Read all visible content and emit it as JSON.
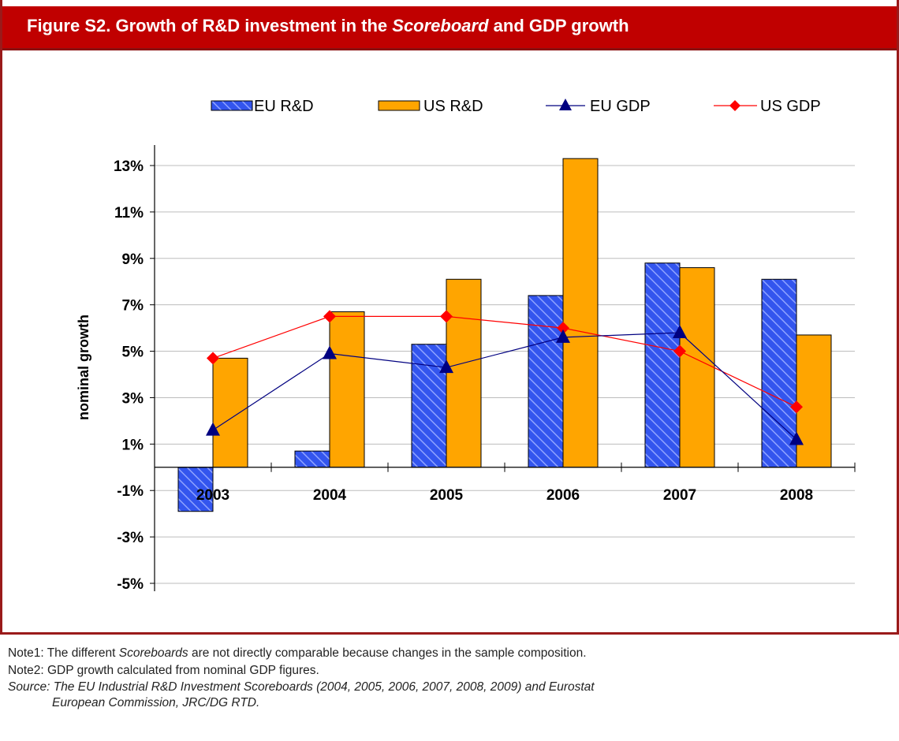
{
  "header": {
    "title_prefix": "Figure S2. Growth of R&D investment in the ",
    "title_em": "Scoreboard",
    "title_suffix": " and GDP growth"
  },
  "notes": {
    "note1_prefix": "Note1: The different ",
    "note1_em": "Scoreboards",
    "note1_suffix": " are not directly comparable because changes in the sample composition.",
    "note2": "Note2: GDP growth calculated from nominal GDP figures.",
    "source_line1": "Source: The EU Industrial R&D Investment Scoreboards (2004, 2005, 2006, 2007, 2008, 2009) and Eurostat",
    "source_line2": "European Commission, JRC/DG RTD."
  },
  "colors": {
    "eu_bar": "#3355ee",
    "us_bar": "#ffa500",
    "eu_gdp": "#000080",
    "us_gdp": "#ff0000",
    "title_bg": "#c00000"
  },
  "chart_data": {
    "type": "bar",
    "categories": [
      "2003",
      "2004",
      "2005",
      "2006",
      "2007",
      "2008"
    ],
    "ylabel": "nominal growth",
    "xlabel": "",
    "ylim": [
      -5,
      14
    ],
    "yticks": [
      "13%",
      "11%",
      "9%",
      "7%",
      "5%",
      "3%",
      "1%",
      "-1%",
      "-3%",
      "-5%"
    ],
    "ytick_values": [
      13,
      11,
      9,
      7,
      5,
      3,
      1,
      -1,
      -3,
      -5
    ],
    "grid": true,
    "legend_position": "top",
    "series": [
      {
        "name": "EU R&D",
        "kind": "bar",
        "pattern": "diagonal-hatch",
        "values": [
          -1.9,
          0.7,
          5.3,
          7.4,
          8.8,
          8.1
        ]
      },
      {
        "name": "US R&D",
        "kind": "bar",
        "values": [
          4.7,
          6.7,
          8.1,
          13.3,
          8.6,
          5.7
        ]
      },
      {
        "name": "EU GDP",
        "kind": "line",
        "marker": "triangle",
        "values": [
          1.6,
          4.9,
          4.3,
          5.6,
          5.8,
          1.2
        ]
      },
      {
        "name": "US GDP",
        "kind": "line",
        "marker": "diamond",
        "values": [
          4.7,
          6.5,
          6.5,
          6.0,
          5.0,
          2.6
        ]
      }
    ]
  }
}
